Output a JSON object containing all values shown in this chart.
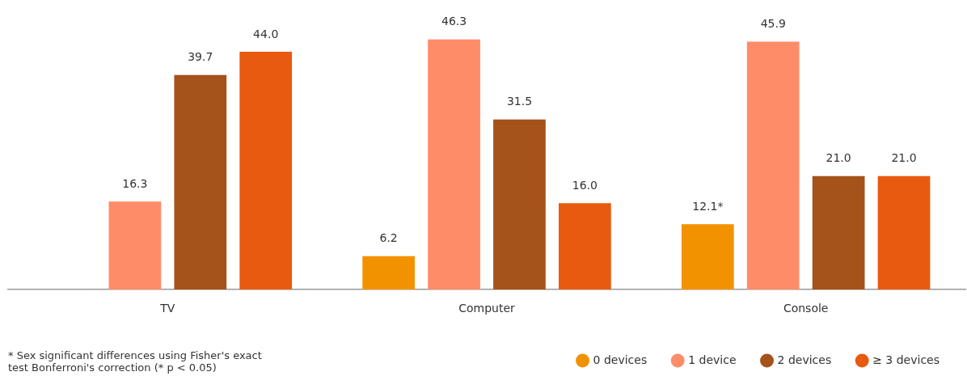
{
  "chart_data": {
    "type": "bar",
    "categories": [
      "TV",
      "Computer",
      "Console"
    ],
    "series": [
      {
        "name": "0 devices",
        "color": "#f39200",
        "values": [
          null,
          6.2,
          12.1
        ],
        "value_labels": [
          null,
          "6.2",
          "12.1*"
        ]
      },
      {
        "name": "1 device",
        "color": "#ff8c69",
        "values": [
          16.3,
          46.3,
          45.9
        ],
        "value_labels": [
          "16.3",
          "46.3",
          "45.9"
        ]
      },
      {
        "name": "2 devices",
        "color": "#a5521b",
        "values": [
          39.7,
          31.5,
          21.0
        ],
        "value_labels": [
          "39.7",
          "31.5",
          "21.0"
        ]
      },
      {
        "name": "≥ 3 devices",
        "color": "#e85a0f",
        "values": [
          44.0,
          16.0,
          21.0
        ],
        "value_labels": [
          "44.0",
          "16.0",
          "21.0"
        ]
      }
    ],
    "legend": "bottom right",
    "grid": false,
    "marker": "circle",
    "tick_labels": "x",
    "annotations": [
      "* Sex significant differences using Fisher's exact test Bonferroni's correction (* p < 0.05)"
    ]
  }
}
